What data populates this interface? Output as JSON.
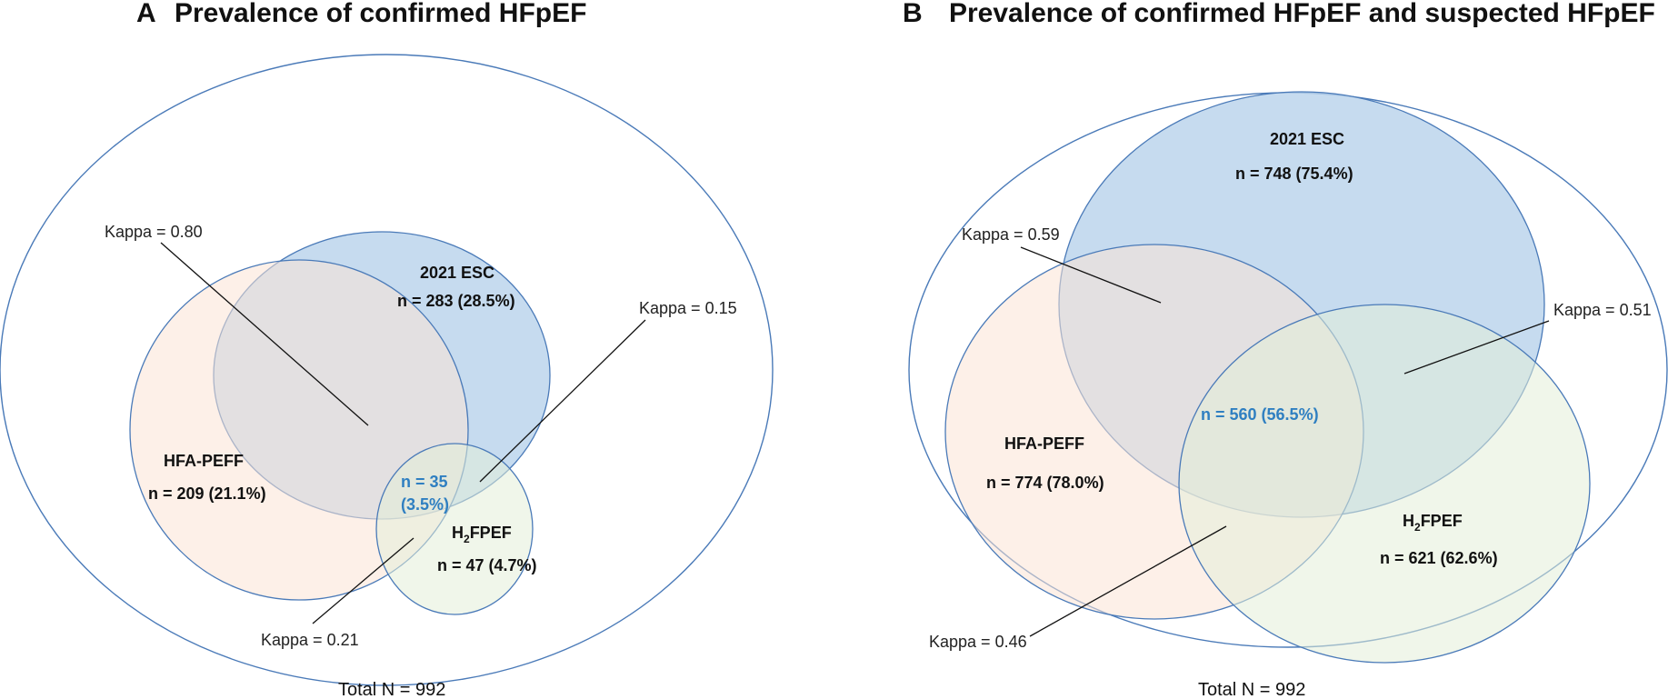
{
  "colors": {
    "outline": "#4a7ab8",
    "esc_fill": "#b9d3ec",
    "hfa_fill": "#fbe3d6",
    "h2f_fill": "#e3efd8",
    "intersection_text": "#2f7fc1"
  },
  "panel_a": {
    "letter": "A",
    "title": "Prevalence of confirmed HFpEF",
    "esc": {
      "name": "2021 ESC",
      "count": "n = 283 (28.5%)"
    },
    "hfa": {
      "name": "HFA-PEFF",
      "count": "n = 209 (21.1%)"
    },
    "h2f": {
      "name_prefix": "H",
      "name_sub": "2",
      "name_suffix": "FPEF",
      "count": "n = 47 (4.7%)"
    },
    "intersection": {
      "line1": "n = 35",
      "line2": "(3.5%)"
    },
    "kappa_esc_hfa": "Kappa = 0.80",
    "kappa_esc_h2f": "Kappa = 0.15",
    "kappa_hfa_h2f": "Kappa = 0.21",
    "total": "Total N = 992"
  },
  "panel_b": {
    "letter": "B",
    "title": "Prevalence of confirmed HFpEF and suspected HFpEF",
    "esc": {
      "name": "2021 ESC",
      "count": "n = 748 (75.4%)"
    },
    "hfa": {
      "name": "HFA-PEFF",
      "count": "n = 774 (78.0%)"
    },
    "h2f": {
      "name_prefix": "H",
      "name_sub": "2",
      "name_suffix": "FPEF",
      "count": "n = 621 (62.6%)"
    },
    "intersection": "n = 560 (56.5%)",
    "kappa_esc_hfa": "Kappa = 0.59",
    "kappa_esc_h2f": "Kappa = 0.51",
    "kappa_hfa_h2f": "Kappa = 0.46",
    "total": "Total N = 992"
  }
}
